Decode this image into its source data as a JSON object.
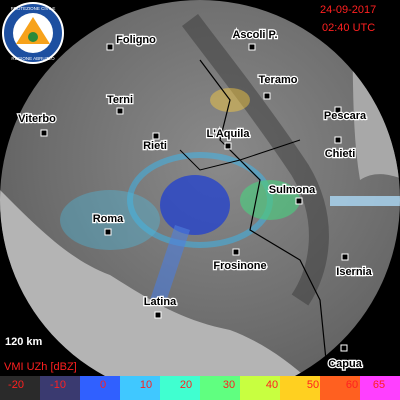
{
  "header": {
    "date": "24-09-2017",
    "time": "02:40 UTC"
  },
  "logo": {
    "top": "PROTEZIONE CIVILE",
    "bottom": "REGIONE ABRUZZO"
  },
  "cities": [
    "Foligno",
    "Ascoli P.",
    "Teramo",
    "Pescara",
    "Viterbo",
    "Terni",
    "Rieti",
    "L'Aquila",
    "Chieti",
    "Sulmona",
    "Roma",
    "Frosinone",
    "Isernia",
    "Latina",
    "Capua"
  ],
  "range": "120 km",
  "legend": {
    "title": "VMI UZh [dBZ]",
    "ticks": [
      -20,
      -10,
      0,
      10,
      20,
      30,
      40,
      50,
      60,
      65
    ]
  }
}
